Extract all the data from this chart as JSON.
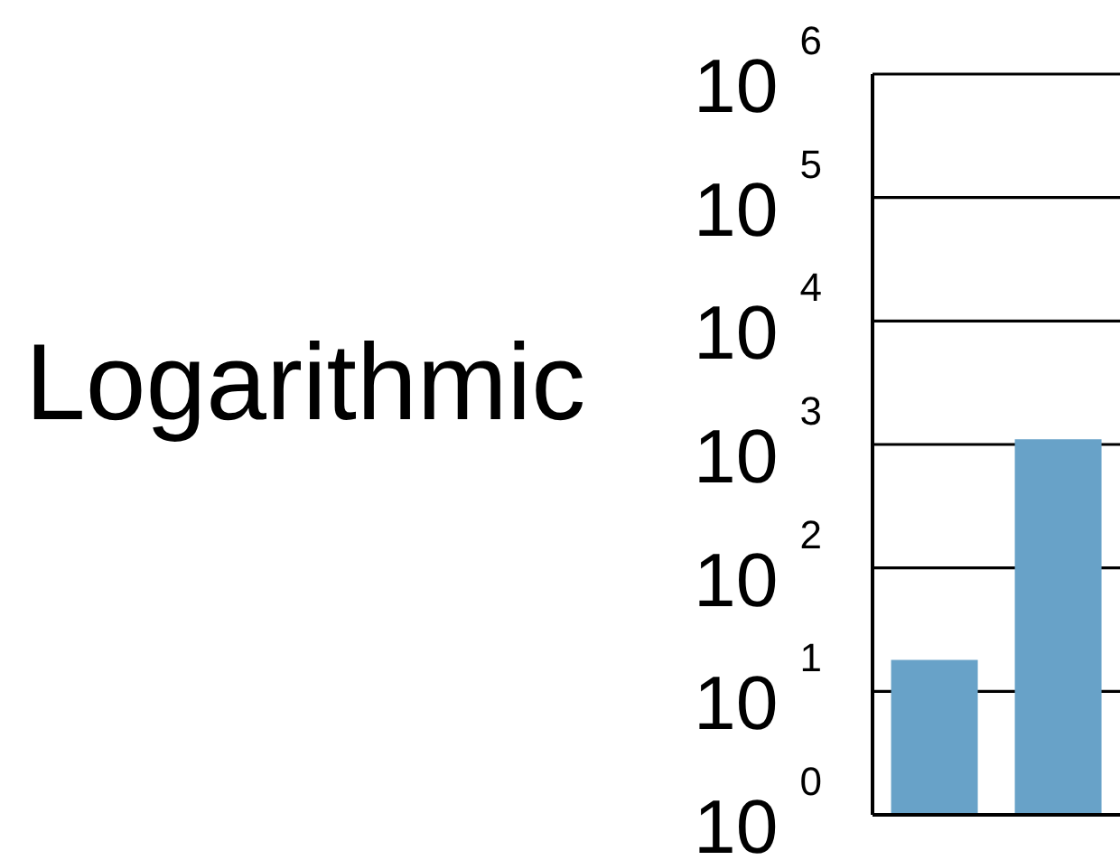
{
  "chart_data": {
    "type": "bar",
    "ylabel": "Logarithmic",
    "categories": [
      null,
      null
    ],
    "values": [
      18,
      1100
    ],
    "color": "#68a2c8",
    "log": "y",
    "ylim": [
      1,
      1000000
    ],
    "yticks": [
      {
        "value": 1,
        "label": "10$^{0}$"
      },
      {
        "value": 10,
        "label": "10$^{1}$"
      },
      {
        "value": 100,
        "label": "10$^{2}$"
      },
      {
        "value": 1000,
        "label": "10$^{3}$"
      },
      {
        "value": 10000,
        "label": "10$^{4}$"
      },
      {
        "value": 100000,
        "label": "10$^{5}$"
      },
      {
        "value": 1000000,
        "label": "10$^{6}$"
      }
    ],
    "grid": "y",
    "tick_labels": "y"
  }
}
